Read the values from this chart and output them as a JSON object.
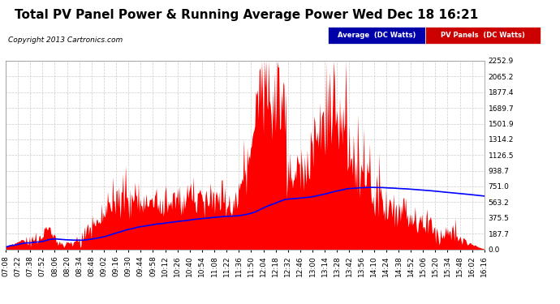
{
  "title": "Total PV Panel Power & Running Average Power Wed Dec 18 16:21",
  "copyright": "Copyright 2013 Cartronics.com",
  "yticks": [
    0.0,
    187.7,
    375.5,
    563.2,
    751.0,
    938.7,
    1126.5,
    1314.2,
    1501.9,
    1689.7,
    1877.4,
    2065.2,
    2252.9
  ],
  "ymax": 2252.9,
  "ymin": 0.0,
  "pv_color": "#FF0000",
  "avg_color": "#0000FF",
  "bg_color": "#FFFFFF",
  "outer_bg": "#FFFFFF",
  "grid_color": "#CCCCCC",
  "legend_avg_bg": "#0000AA",
  "legend_pv_bg": "#CC0000",
  "legend_avg_label": "Average  (DC Watts)",
  "legend_pv_label": "PV Panels  (DC Watts)",
  "x_labels": [
    "07:08",
    "07:22",
    "07:38",
    "07:52",
    "08:06",
    "08:20",
    "08:34",
    "08:48",
    "09:02",
    "09:16",
    "09:30",
    "09:44",
    "09:58",
    "10:12",
    "10:26",
    "10:40",
    "10:54",
    "11:08",
    "11:22",
    "11:36",
    "11:50",
    "12:04",
    "12:18",
    "12:32",
    "12:46",
    "13:00",
    "13:14",
    "13:28",
    "13:42",
    "13:56",
    "14:10",
    "14:24",
    "14:38",
    "14:52",
    "15:06",
    "15:20",
    "15:34",
    "15:48",
    "16:02",
    "16:16"
  ],
  "title_fontsize": 11,
  "tick_fontsize": 6.5,
  "copyright_fontsize": 6.5
}
